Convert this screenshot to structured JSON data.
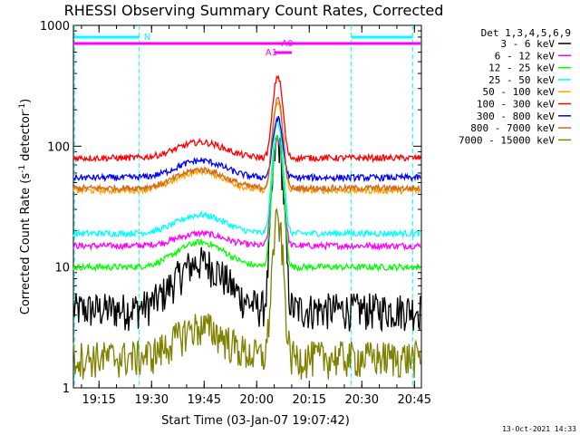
{
  "chart_data": {
    "type": "line",
    "title": "RHESSI Observing Summary Count Rates, Corrected",
    "xlabel": "Start Time (03-Jan-07 19:07:42)",
    "ylabel_main": "Corrected Count Rate (s",
    "ylabel_sup1": "-1",
    "ylabel_mid": " detector",
    "ylabel_sup2": "-1",
    "ylabel_end": ")",
    "y_scale": "log",
    "xlim": [
      "19:07:42",
      "20:47:00"
    ],
    "ylim": [
      1,
      1000
    ],
    "x_ticks": [
      "19:15",
      "19:30",
      "19:45",
      "20:00",
      "20:15",
      "20:30",
      "20:45"
    ],
    "y_ticks": [
      "1",
      "10",
      "100",
      "1000"
    ],
    "legend": {
      "header": "Det 1,3,4,5,6,9",
      "placement": "right"
    },
    "series": [
      {
        "name": "3 - 6 keV",
        "color": "#000000",
        "base": 4.5,
        "hump": 11,
        "peak": 110
      },
      {
        "name": "6 - 12 keV",
        "color": "#ff00ff",
        "base": 15,
        "hump": 19,
        "peak": 115
      },
      {
        "name": "12 - 25 keV",
        "color": "#00ff00",
        "base": 10,
        "hump": 16,
        "peak": 120
      },
      {
        "name": "25 - 50 keV",
        "color": "#00ffff",
        "base": 19,
        "hump": 27,
        "peak": 160
      },
      {
        "name": "50 - 100 keV",
        "color": "#ffa500",
        "base": 43,
        "hump": 62,
        "peak": 230
      },
      {
        "name": "100 - 300 keV",
        "color": "#ff0000",
        "base": 80,
        "hump": 108,
        "peak": 380
      },
      {
        "name": "300 - 800 keV",
        "color": "#0000ff",
        "base": 55,
        "hump": 76,
        "peak": 170
      },
      {
        "name": "800 - 7000 keV",
        "color": "#d2691e",
        "base": 45,
        "hump": 64,
        "peak": 250
      },
      {
        "name": "7000 - 15000 keV",
        "color": "#808000",
        "base": 1.8,
        "hump": 3.2,
        "peak": 24
      }
    ],
    "annotations": [
      {
        "label": "N",
        "color": "#00ffff"
      },
      {
        "label": "A0",
        "color": "#ff00ff"
      },
      {
        "label": "A1",
        "color": "#ff00ff"
      }
    ],
    "footer_date": "13-Oct-2021 14:33"
  }
}
